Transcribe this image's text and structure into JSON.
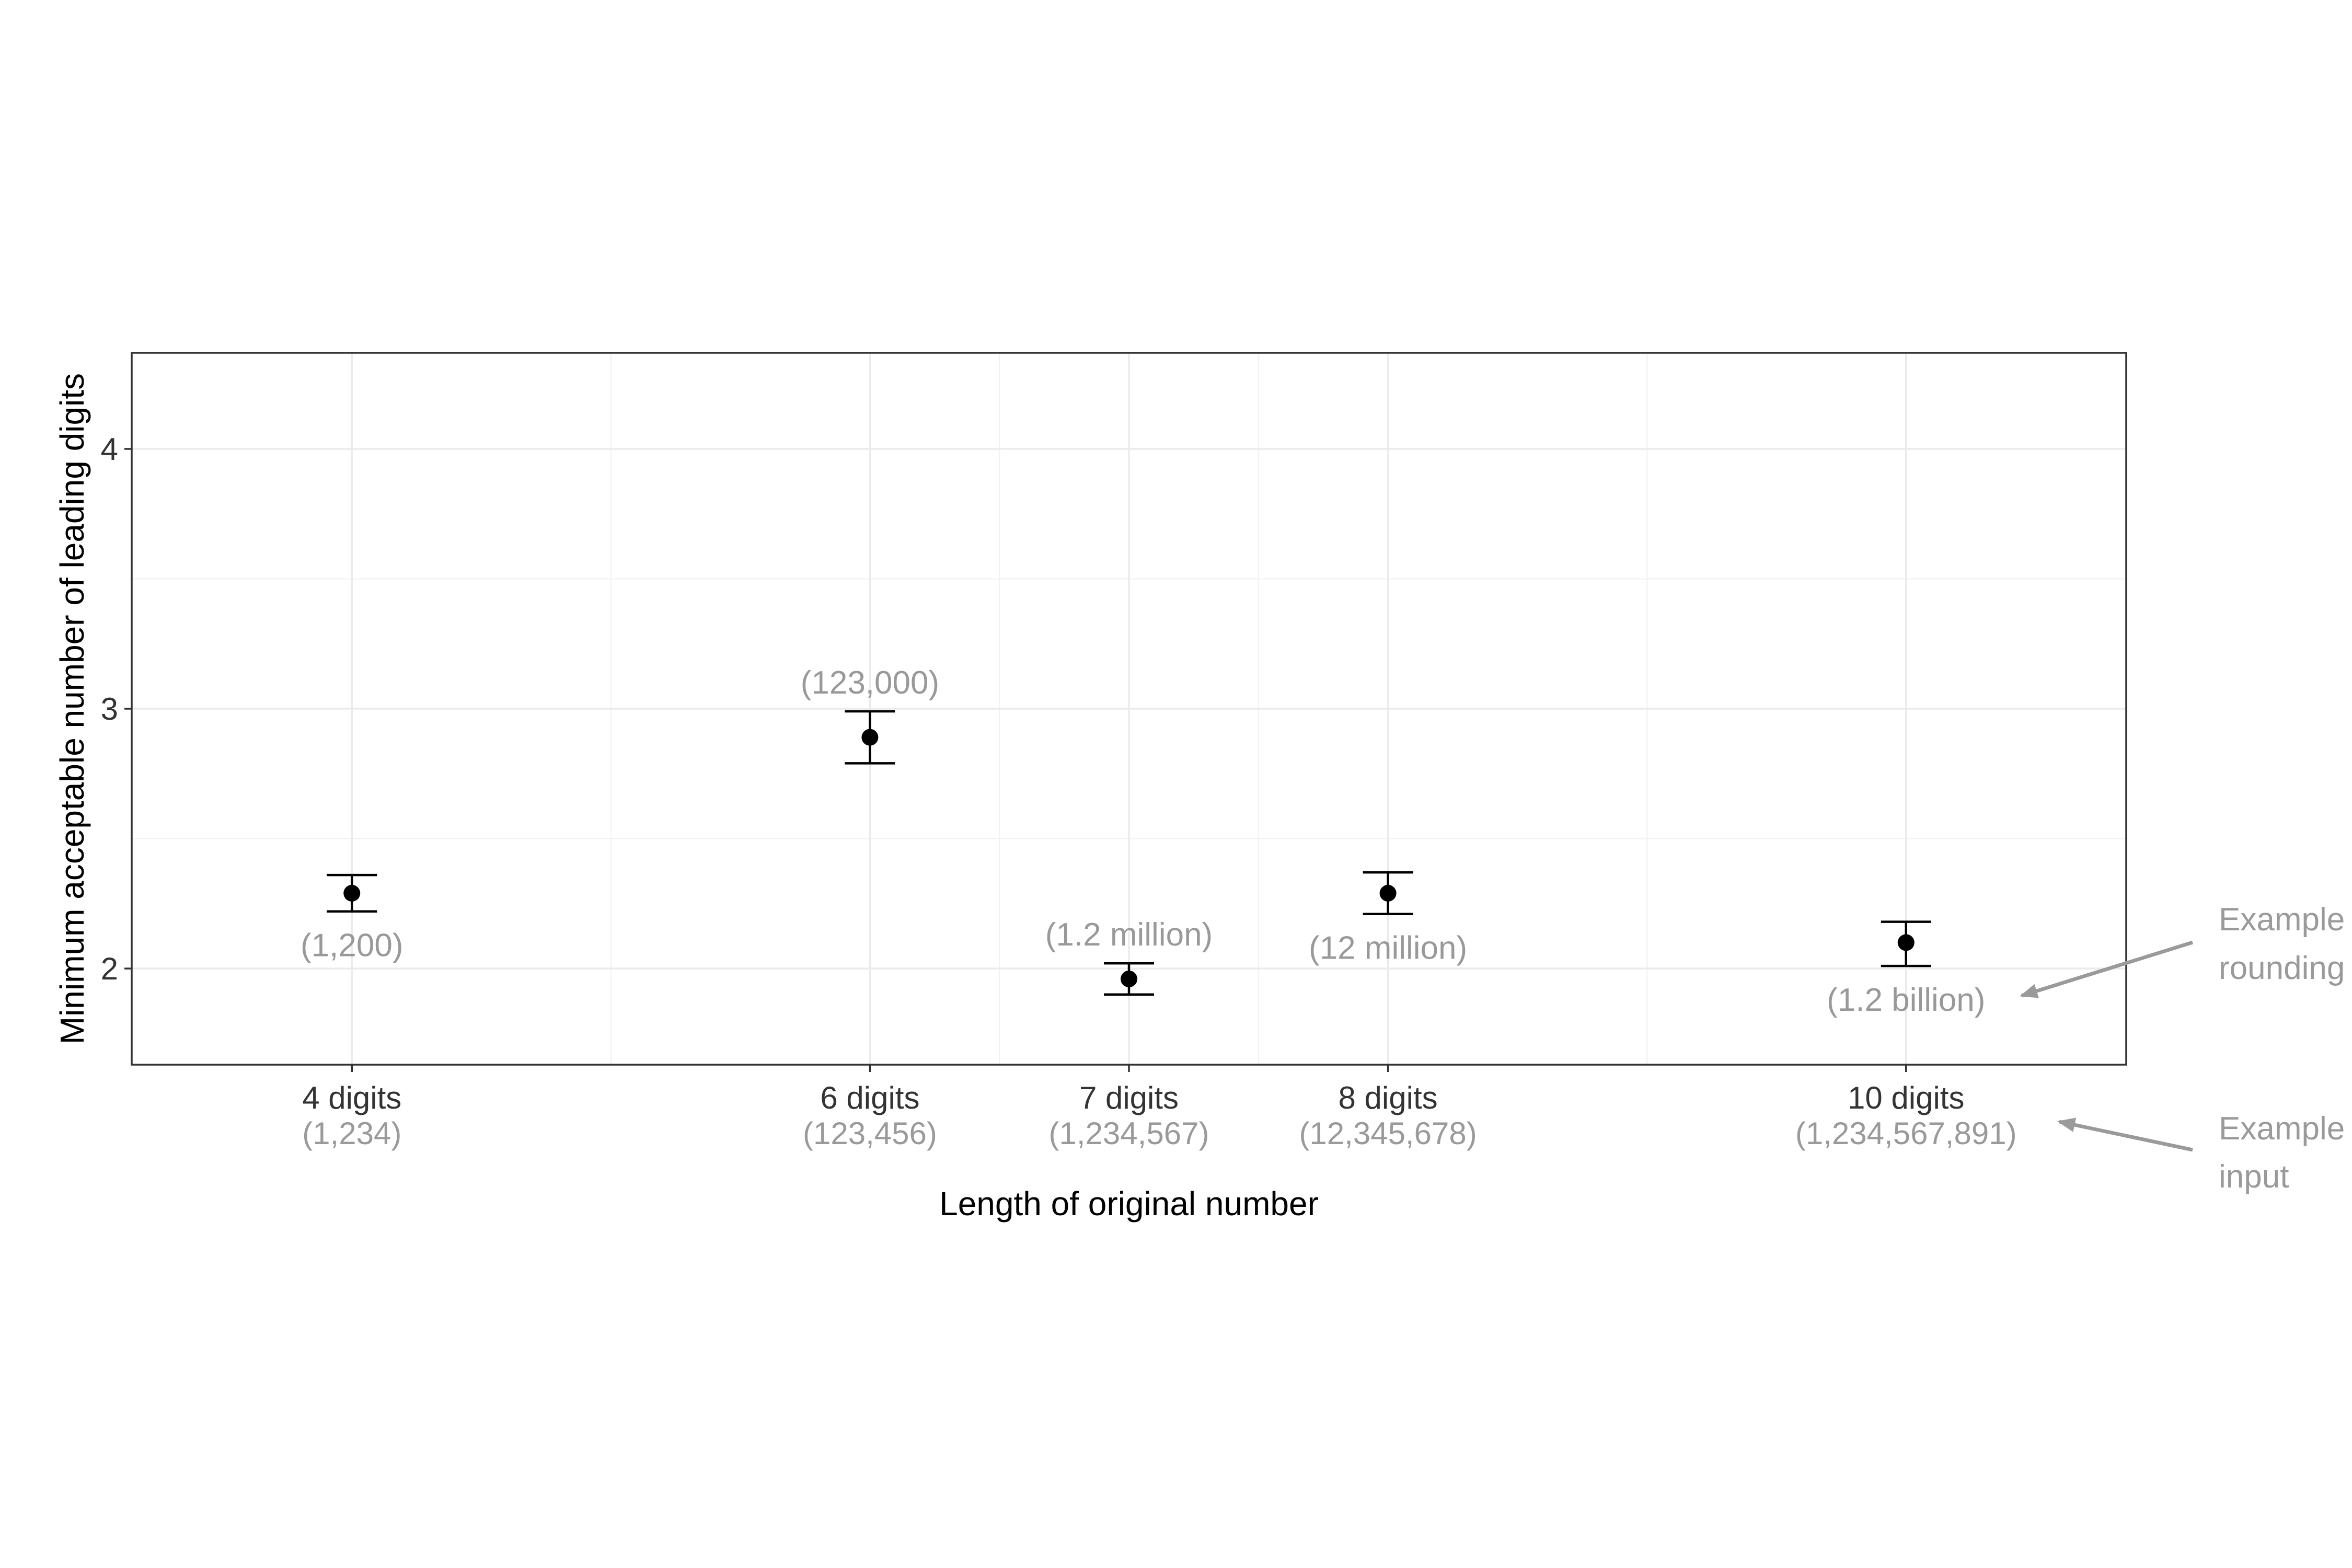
{
  "chart_data": {
    "type": "scatter",
    "title": "",
    "xlabel": "Length of original number",
    "ylabel": "Minimum acceptable number of leading digits",
    "xlim": [
      3.15,
      10.85
    ],
    "ylim": [
      1.63,
      4.37
    ],
    "x_breaks": [
      4,
      6,
      7,
      8,
      10
    ],
    "x_minor_breaks": [
      5,
      6.5,
      7.5,
      9
    ],
    "y_breaks": [
      2,
      3,
      4
    ],
    "y_minor_breaks": [
      2.5,
      3.5
    ],
    "y_tick_labels": [
      "2",
      "3",
      "4"
    ],
    "grid": true,
    "legend": "none",
    "categories": [
      {
        "x": 4,
        "label": "4 digits",
        "example_input": "(1,234)"
      },
      {
        "x": 6,
        "label": "6 digits",
        "example_input": "(123,456)"
      },
      {
        "x": 7,
        "label": "7 digits",
        "example_input": "(1,234,567)"
      },
      {
        "x": 8,
        "label": "8 digits",
        "example_input": "(12,345,678)"
      },
      {
        "x": 10,
        "label": "10 digits",
        "example_input": "(1,234,567,891)"
      }
    ],
    "points": [
      {
        "x": 4,
        "y": 2.29,
        "ymin": 2.22,
        "ymax": 2.36,
        "label": "(1,200)",
        "label_pos": "below"
      },
      {
        "x": 6,
        "y": 2.89,
        "ymin": 2.79,
        "ymax": 2.99,
        "label": "(123,000)",
        "label_pos": "above"
      },
      {
        "x": 7,
        "y": 1.96,
        "ymin": 1.9,
        "ymax": 2.02,
        "label": "(1.2 million)",
        "label_pos": "above"
      },
      {
        "x": 8,
        "y": 2.29,
        "ymin": 2.21,
        "ymax": 2.37,
        "label": "(12 million)",
        "label_pos": "below"
      },
      {
        "x": 10,
        "y": 2.1,
        "ymin": 2.01,
        "ymax": 2.18,
        "label": "(1.2 billion)",
        "label_pos": "below"
      }
    ],
    "annotations": [
      {
        "lines": [
          "Example",
          "rounding"
        ],
        "points_to": "point-labels"
      },
      {
        "lines": [
          "Example",
          "input"
        ],
        "points_to": "x-tick-examples"
      }
    ],
    "colors": {
      "points": "#000000",
      "labels": "#999999",
      "annotations": "#9a9a9a"
    }
  }
}
